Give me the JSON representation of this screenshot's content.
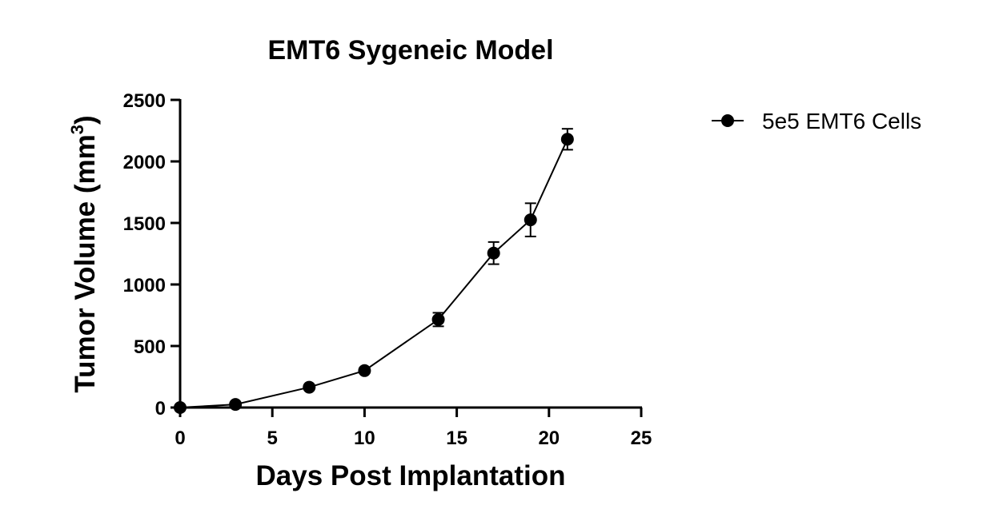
{
  "chart_data": {
    "type": "line",
    "title": "EMT6 Sygeneic Model",
    "xlabel": "Days Post Implantation",
    "ylabel": "Tumor Volume (mm",
    "ylabel_superscript": "3",
    "ylabel_suffix": ")",
    "xlim": [
      0,
      25
    ],
    "ylim": [
      0,
      2500
    ],
    "x_ticks": [
      "0",
      "5",
      "10",
      "15",
      "20",
      "25"
    ],
    "y_ticks": [
      "0",
      "500",
      "1000",
      "1500",
      "2000",
      "2500"
    ],
    "grid": false,
    "legend_position": "top-right",
    "series": [
      {
        "name": "5e5 EMT6 Cells",
        "color": "#000000",
        "marker": "circle",
        "points": [
          {
            "x": 0,
            "y": 0,
            "err": 0
          },
          {
            "x": 3,
            "y": 25,
            "err": 8
          },
          {
            "x": 7,
            "y": 165,
            "err": 15
          },
          {
            "x": 10,
            "y": 300,
            "err": 20
          },
          {
            "x": 14,
            "y": 715,
            "err": 55
          },
          {
            "x": 17,
            "y": 1255,
            "err": 90
          },
          {
            "x": 19,
            "y": 1525,
            "err": 135
          },
          {
            "x": 21,
            "y": 2180,
            "err": 85
          }
        ]
      }
    ]
  }
}
